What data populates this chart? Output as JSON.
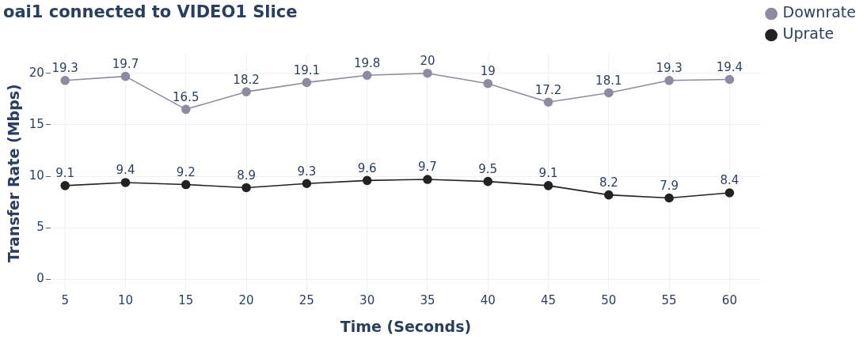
{
  "chart_data": {
    "type": "line",
    "title": "oai1 connected to VIDEO1 Slice",
    "xlabel": "Time (Seconds)",
    "ylabel": "Transfer Rate (Mbps)",
    "x": [
      5,
      10,
      15,
      20,
      25,
      30,
      35,
      40,
      45,
      50,
      55,
      60
    ],
    "series": [
      {
        "name": "Downrate",
        "color": "#8f8aa0",
        "values": [
          19.3,
          19.7,
          16.5,
          18.2,
          19.1,
          19.8,
          20,
          19,
          17.2,
          18.1,
          19.3,
          19.4
        ]
      },
      {
        "name": "Uprate",
        "color": "#222222",
        "values": [
          9.1,
          9.4,
          9.2,
          8.9,
          9.3,
          9.6,
          9.7,
          9.5,
          9.1,
          8.2,
          7.9,
          8.4
        ]
      }
    ],
    "xlim": [
      3.8,
      62.6
    ],
    "xticks": [
      5,
      10,
      15,
      20,
      25,
      30,
      35,
      40,
      45,
      50,
      55,
      60
    ],
    "ylim": [
      -1.2,
      21.8
    ],
    "yticks": [
      0,
      5,
      10,
      15,
      20
    ],
    "grid": true,
    "legend": "top right",
    "marker": "circle",
    "line_style": "solid",
    "data_labels": true
  }
}
